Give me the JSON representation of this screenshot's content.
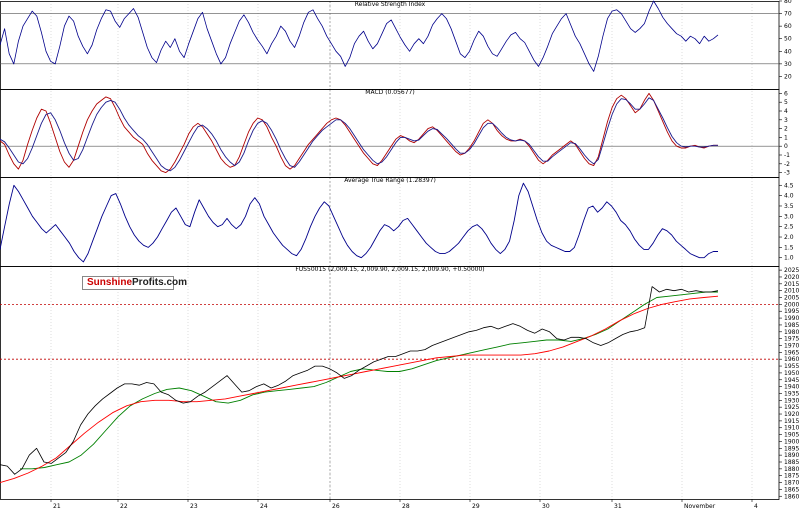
{
  "chart_data": [
    {
      "type": "line",
      "panel": "rsi",
      "title": "Relative Strength Index",
      "ylim": [
        10,
        80
      ],
      "yticks": [
        20,
        30,
        40,
        50,
        60,
        70,
        80
      ],
      "reference_lines": [
        30,
        70
      ],
      "color": "#00008b",
      "values": [
        45,
        58,
        38,
        30,
        48,
        60,
        66,
        72,
        68,
        55,
        40,
        32,
        30,
        44,
        60,
        68,
        64,
        52,
        44,
        38,
        45,
        57,
        66,
        73,
        72,
        64,
        59,
        66,
        70,
        74,
        67,
        55,
        43,
        35,
        31,
        41,
        48,
        43,
        50,
        40,
        35,
        46,
        56,
        66,
        71,
        58,
        48,
        38,
        30,
        35,
        46,
        55,
        64,
        69,
        63,
        55,
        49,
        44,
        38,
        46,
        52,
        60,
        56,
        48,
        43,
        52,
        63,
        71,
        73,
        66,
        60,
        52,
        46,
        40,
        36,
        28,
        35,
        46,
        52,
        56,
        48,
        42,
        46,
        54,
        62,
        65,
        58,
        51,
        45,
        40,
        46,
        50,
        46,
        52,
        61,
        66,
        70,
        66,
        58,
        48,
        38,
        35,
        40,
        49,
        56,
        52,
        44,
        38,
        36,
        42,
        48,
        53,
        55,
        50,
        47,
        40,
        33,
        28,
        35,
        44,
        54,
        60,
        66,
        70,
        61,
        52,
        46,
        38,
        30,
        24,
        36,
        52,
        66,
        72,
        73,
        70,
        64,
        58,
        55,
        58,
        62,
        72,
        80,
        74,
        67,
        62,
        58,
        54,
        52,
        48,
        52,
        50,
        46,
        52,
        48,
        50,
        53
      ]
    },
    {
      "type": "line",
      "panel": "macd",
      "title": "MACD (0.05677)",
      "ylim": [
        -3.5,
        6.5
      ],
      "yticks": [
        -3,
        -2,
        -1,
        0,
        1,
        2,
        3,
        4,
        5,
        6
      ],
      "reference_lines": [
        0
      ],
      "series": [
        {
          "color": "#b00000",
          "values": [
            0.6,
            0.2,
            -1.0,
            -2.0,
            -2.6,
            -1.6,
            0.2,
            1.8,
            3.2,
            4.2,
            4.0,
            2.6,
            1.0,
            -0.6,
            -1.8,
            -2.4,
            -1.6,
            0.0,
            1.6,
            3.0,
            4.0,
            4.8,
            5.2,
            5.6,
            5.4,
            4.4,
            3.2,
            2.2,
            1.6,
            1.0,
            0.6,
            0.2,
            -0.8,
            -1.6,
            -2.2,
            -2.8,
            -3.0,
            -2.6,
            -1.8,
            -0.8,
            0.2,
            1.4,
            2.2,
            2.6,
            2.2,
            1.4,
            0.6,
            -0.4,
            -1.4,
            -2.0,
            -2.4,
            -2.2,
            -1.2,
            0.2,
            1.6,
            2.6,
            3.2,
            3.0,
            2.2,
            1.0,
            0.0,
            -1.2,
            -2.2,
            -2.6,
            -2.2,
            -1.4,
            -0.6,
            0.2,
            0.8,
            1.4,
            2.0,
            2.6,
            3.0,
            3.2,
            3.0,
            2.4,
            1.6,
            0.8,
            0.0,
            -0.8,
            -1.4,
            -2.0,
            -2.2,
            -1.6,
            -0.8,
            0.0,
            0.8,
            1.2,
            1.0,
            0.6,
            0.4,
            0.8,
            1.4,
            2.0,
            2.2,
            1.8,
            1.2,
            0.6,
            0.0,
            -0.6,
            -1.0,
            -0.8,
            -0.2,
            0.6,
            1.6,
            2.6,
            3.0,
            2.6,
            1.8,
            1.2,
            0.8,
            0.6,
            0.6,
            0.8,
            0.6,
            0.0,
            -0.8,
            -1.6,
            -2.0,
            -1.6,
            -1.0,
            -0.6,
            -0.2,
            0.2,
            0.6,
            0.2,
            -0.6,
            -1.4,
            -2.0,
            -2.2,
            -1.2,
            0.8,
            2.8,
            4.4,
            5.4,
            5.8,
            5.4,
            4.6,
            3.8,
            4.2,
            5.2,
            6.0,
            5.2,
            4.0,
            2.8,
            1.6,
            0.6,
            0.0,
            -0.2,
            -0.2,
            0.0,
            0.1,
            -0.1,
            -0.2,
            0.0,
            0.1,
            0.1
          ]
        },
        {
          "color": "#1a1a8c",
          "values": [
            0.8,
            0.5,
            -0.2,
            -1.0,
            -1.8,
            -2.0,
            -1.4,
            -0.2,
            1.2,
            2.6,
            3.6,
            3.8,
            3.0,
            1.8,
            0.4,
            -0.8,
            -1.6,
            -1.4,
            -0.4,
            1.0,
            2.4,
            3.6,
            4.4,
            5.0,
            5.2,
            5.0,
            4.2,
            3.2,
            2.4,
            1.8,
            1.2,
            0.8,
            0.2,
            -0.6,
            -1.4,
            -2.2,
            -2.6,
            -2.8,
            -2.4,
            -1.6,
            -0.6,
            0.4,
            1.4,
            2.2,
            2.4,
            2.0,
            1.4,
            0.6,
            -0.4,
            -1.2,
            -1.8,
            -2.2,
            -1.8,
            -0.8,
            0.6,
            1.8,
            2.6,
            2.9,
            2.6,
            1.8,
            0.8,
            -0.4,
            -1.4,
            -2.2,
            -2.4,
            -1.8,
            -1.0,
            -0.2,
            0.6,
            1.2,
            1.8,
            2.2,
            2.6,
            3.0,
            3.0,
            2.6,
            2.0,
            1.2,
            0.4,
            -0.4,
            -1.0,
            -1.6,
            -2.0,
            -1.8,
            -1.2,
            -0.4,
            0.4,
            1.0,
            1.0,
            0.8,
            0.6,
            0.7,
            1.2,
            1.7,
            2.0,
            1.9,
            1.4,
            0.9,
            0.3,
            -0.3,
            -0.8,
            -0.8,
            -0.4,
            0.3,
            1.2,
            2.1,
            2.6,
            2.6,
            2.1,
            1.5,
            1.0,
            0.7,
            0.6,
            0.7,
            0.6,
            0.2,
            -0.5,
            -1.2,
            -1.7,
            -1.7,
            -1.2,
            -0.8,
            -0.4,
            0.0,
            0.4,
            0.3,
            -0.3,
            -1.0,
            -1.6,
            -2.0,
            -1.5,
            0.2,
            2.0,
            3.6,
            4.8,
            5.4,
            5.3,
            4.8,
            4.2,
            4.2,
            4.8,
            5.5,
            5.2,
            4.2,
            3.2,
            2.1,
            1.1,
            0.4,
            0.0,
            -0.1,
            0.0,
            0.0,
            -0.1,
            -0.1,
            0.0,
            0.1,
            0.1
          ]
        }
      ]
    },
    {
      "type": "line",
      "panel": "atr",
      "title": "Average True Range (1.28397)",
      "ylim": [
        0.6,
        4.9
      ],
      "yticks": [
        1.0,
        1.5,
        2.0,
        2.5,
        3.0,
        3.5,
        4.0,
        4.5
      ],
      "color": "#00008b",
      "values": [
        1.4,
        2.5,
        3.6,
        4.5,
        4.2,
        3.8,
        3.4,
        3.0,
        2.7,
        2.4,
        2.2,
        2.4,
        2.6,
        2.3,
        2.0,
        1.7,
        1.3,
        1.0,
        0.8,
        1.2,
        1.8,
        2.4,
        3.0,
        3.5,
        4.0,
        4.1,
        3.6,
        3.0,
        2.5,
        2.1,
        1.8,
        1.6,
        1.5,
        1.7,
        2.0,
        2.4,
        2.8,
        3.2,
        3.4,
        3.0,
        2.6,
        2.5,
        3.2,
        3.8,
        3.4,
        3.0,
        2.7,
        2.5,
        2.6,
        2.9,
        2.6,
        2.4,
        2.6,
        3.0,
        3.6,
        3.9,
        3.6,
        3.0,
        2.6,
        2.2,
        1.9,
        1.6,
        1.4,
        1.2,
        1.1,
        1.4,
        1.9,
        2.5,
        3.0,
        3.4,
        3.7,
        3.5,
        3.0,
        2.5,
        2.0,
        1.6,
        1.3,
        1.1,
        1.0,
        1.2,
        1.5,
        1.9,
        2.3,
        2.6,
        2.5,
        2.3,
        2.5,
        2.8,
        2.9,
        2.6,
        2.3,
        2.0,
        1.7,
        1.5,
        1.3,
        1.2,
        1.2,
        1.3,
        1.5,
        1.7,
        2.0,
        2.3,
        2.5,
        2.6,
        2.4,
        2.1,
        1.7,
        1.4,
        1.2,
        1.4,
        1.8,
        2.8,
        4.0,
        4.6,
        4.2,
        3.5,
        2.8,
        2.2,
        1.8,
        1.6,
        1.5,
        1.4,
        1.3,
        1.3,
        1.5,
        2.1,
        2.8,
        3.4,
        3.5,
        3.2,
        3.4,
        3.7,
        3.5,
        3.2,
        2.8,
        2.6,
        2.3,
        1.9,
        1.6,
        1.4,
        1.4,
        1.7,
        2.1,
        2.4,
        2.3,
        2.1,
        1.8,
        1.6,
        1.4,
        1.2,
        1.1,
        1.0,
        1.0,
        1.2,
        1.3,
        1.3
      ]
    },
    {
      "type": "line",
      "panel": "price",
      "title": "FUS50015 (2,009.15, 2,009.90, 2,009.15, 2,009.90, +0.50000)",
      "ylim": [
        1858,
        2028
      ],
      "yticks": [
        1860,
        1865,
        1870,
        1875,
        1880,
        1885,
        1890,
        1895,
        1900,
        1905,
        1910,
        1915,
        1920,
        1925,
        1930,
        1935,
        1940,
        1945,
        1950,
        1955,
        1960,
        1965,
        1970,
        1975,
        1980,
        1985,
        1990,
        1995,
        2000,
        2005,
        2010,
        2015,
        2020,
        2025
      ],
      "horizontal_levels": [
        1960,
        2000
      ],
      "x_tick_labels": [
        "21",
        "22",
        "23",
        "24",
        "26",
        "28",
        "29",
        "30",
        "31",
        "November",
        "4"
      ],
      "series": [
        {
          "color": "#000000",
          "values": [
            1883,
            1882,
            1876,
            1880,
            1890,
            1895,
            1885,
            1884,
            1888,
            1892,
            1900,
            1912,
            1920,
            1926,
            1931,
            1935,
            1939,
            1942,
            1942,
            1941,
            1943,
            1942,
            1936,
            1934,
            1930,
            1928,
            1929,
            1933,
            1936,
            1940,
            1944,
            1948,
            1942,
            1936,
            1937,
            1940,
            1942,
            1939,
            1941,
            1944,
            1948,
            1950,
            1952,
            1955,
            1955,
            1953,
            1950,
            1946,
            1948,
            1952,
            1955,
            1958,
            1960,
            1962,
            1962,
            1964,
            1966,
            1966,
            1967,
            1970,
            1972,
            1974,
            1976,
            1978,
            1980,
            1981,
            1983,
            1984,
            1982,
            1984,
            1986,
            1984,
            1981,
            1979,
            1982,
            1980,
            1975,
            1974,
            1976,
            1976,
            1975,
            1972,
            1970,
            1972,
            1975,
            1978,
            1980,
            1981,
            1983,
            2013,
            2009,
            2011,
            2010,
            2011,
            2009,
            2010,
            2009,
            2009,
            2010
          ]
        },
        {
          "color": "#008000",
          "values": [
            1880,
            1880,
            1881,
            1883,
            1885,
            1890,
            1898,
            1908,
            1918,
            1926,
            1931,
            1935,
            1938,
            1939,
            1937,
            1933,
            1929,
            1928,
            1930,
            1934,
            1936,
            1937,
            1938,
            1939,
            1940,
            1943,
            1947,
            1951,
            1953,
            1952,
            1951,
            1951,
            1953,
            1956,
            1959,
            1961,
            1963,
            1965,
            1967,
            1969,
            1971,
            1972,
            1973,
            1974,
            1974,
            1973,
            1975,
            1978,
            1982,
            1988,
            1994,
            2000,
            2005,
            2006,
            2007,
            2008,
            2009,
            2009
          ]
        },
        {
          "color": "#ff0000",
          "values": [
            1870,
            1873,
            1877,
            1882,
            1888,
            1897,
            1906,
            1914,
            1921,
            1926,
            1929,
            1930,
            1930,
            1929,
            1929,
            1930,
            1931,
            1933,
            1935,
            1937,
            1939,
            1941,
            1943,
            1945,
            1947,
            1949,
            1951,
            1953,
            1955,
            1957,
            1959,
            1961,
            1962,
            1963,
            1963,
            1963,
            1963,
            1963,
            1964,
            1966,
            1969,
            1973,
            1977,
            1982,
            1988,
            1993,
            1997,
            2000,
            2002,
            2004,
            2005,
            2006
          ]
        }
      ]
    }
  ],
  "logo": {
    "part1": "Sunshine",
    "part2": "Profits.com"
  }
}
